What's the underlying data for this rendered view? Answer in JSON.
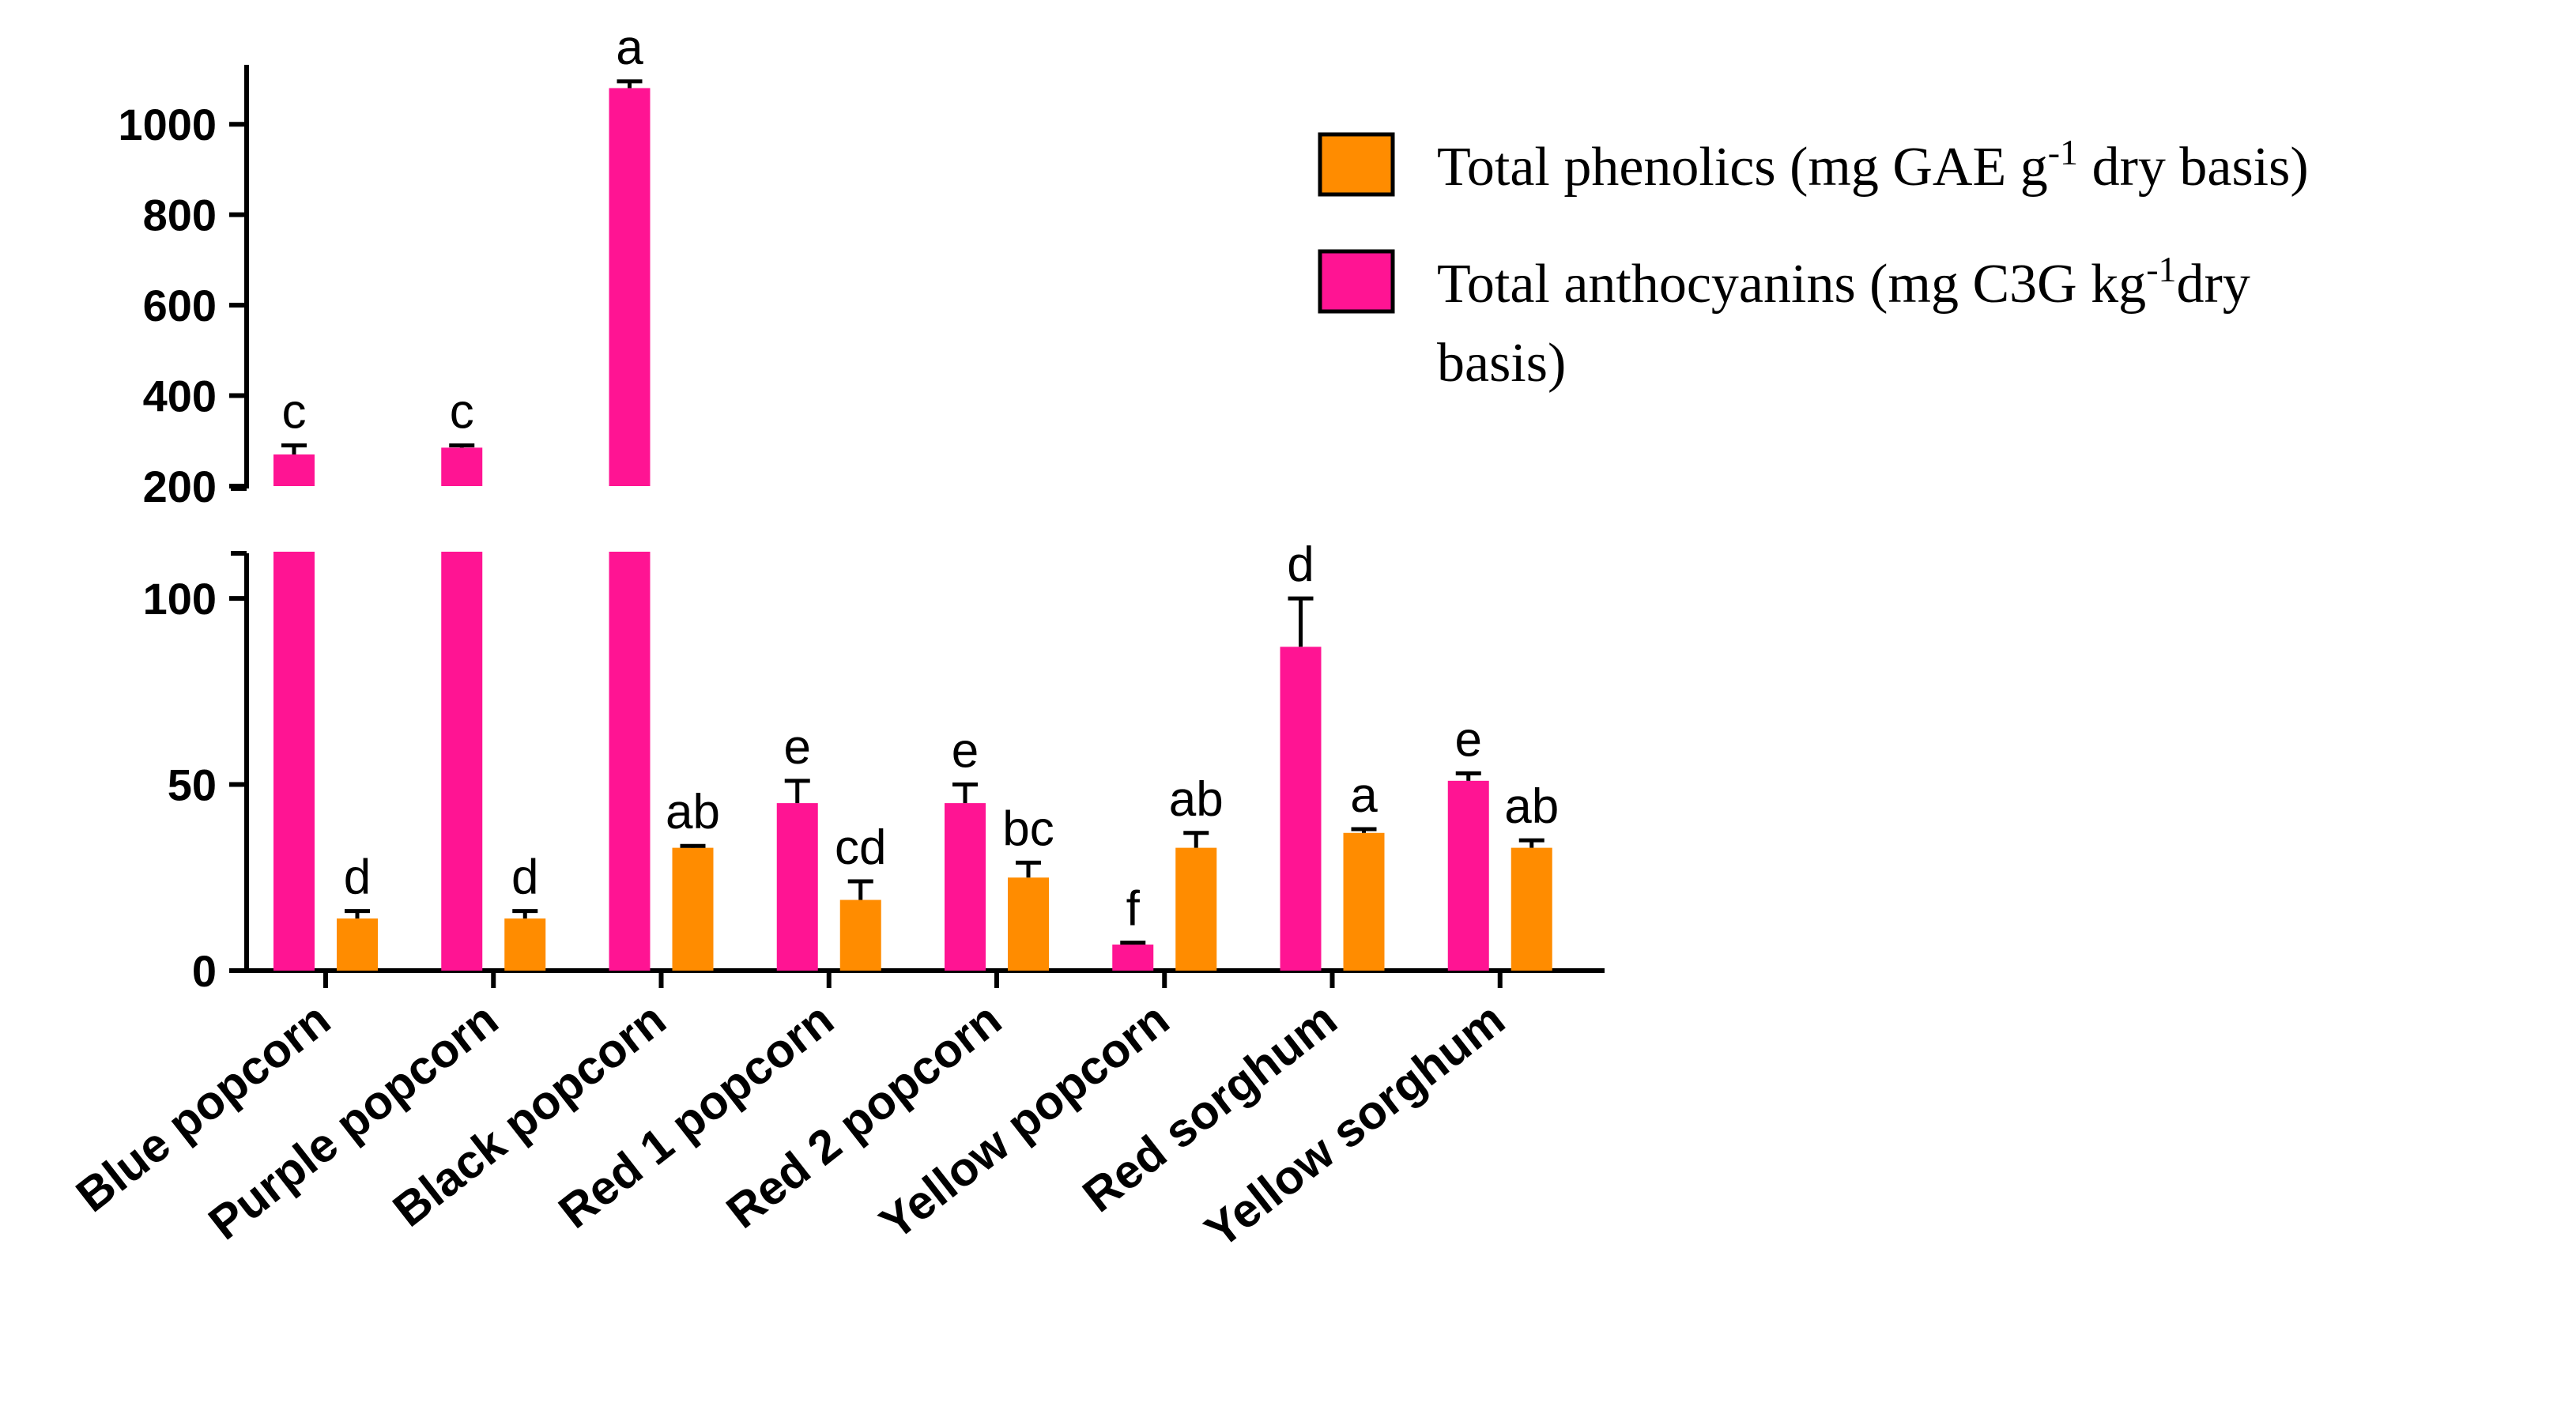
{
  "chart_data": {
    "type": "bar",
    "title": "",
    "xlabel": "",
    "ylabel": "",
    "categories": [
      "Blue popcorn",
      "Purple popcorn",
      "Black popcorn",
      "Red 1 popcorn",
      "Red 2 popcorn",
      "Yellow popcorn",
      "Red sorghum",
      "Yellow sorghum"
    ],
    "axis_break": {
      "lower_range": [
        0,
        110
      ],
      "upper_range": [
        200,
        1100
      ]
    },
    "lower_ticks": [
      0,
      50,
      100
    ],
    "upper_ticks": [
      200,
      400,
      600,
      800,
      1000
    ],
    "grid": false,
    "legend_position": "top-right",
    "series": [
      {
        "name": "Total anthocyanins",
        "legend_text": "Total anthocyanins (mg C3G kg",
        "legend_sup": "-1",
        "legend_after": "dry",
        "legend_line2": "basis)",
        "color": "#FF1493",
        "values": [
          270,
          285,
          1080,
          45,
          45,
          7,
          87,
          51
        ],
        "errors": [
          20,
          5,
          15,
          6,
          5,
          0.5,
          13,
          2
        ],
        "letters": [
          "c",
          "c",
          "a",
          "e",
          "e",
          "f",
          "d",
          "e"
        ]
      },
      {
        "name": "Total phenolics",
        "legend_text": "Total phenolics (mg GAE g",
        "legend_sup": "-1",
        "legend_after": " dry basis)",
        "color": "#FF8C00",
        "values": [
          14,
          14,
          33,
          19,
          25,
          33,
          37,
          33
        ],
        "errors": [
          2,
          2,
          0.5,
          5,
          4,
          4,
          1,
          2
        ],
        "letters": [
          "d",
          "d",
          "ab",
          "cd",
          "bc",
          "ab",
          "a",
          "ab"
        ]
      }
    ]
  }
}
